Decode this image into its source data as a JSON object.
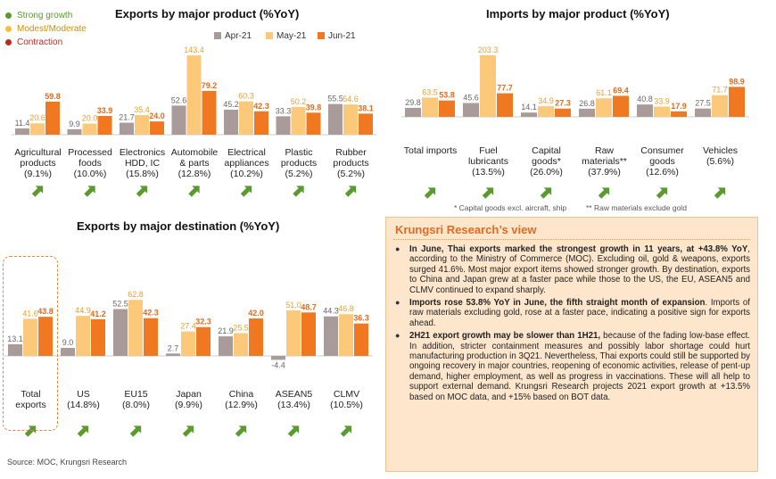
{
  "legend": {
    "strong": "Strong growth",
    "modest": "Modest/Moderate",
    "contraction": "Contraction",
    "colors": {
      "strong": "#5a9a2e",
      "modest": "#f5c040",
      "contraction": "#c0281e"
    }
  },
  "source": "Source: MOC, Krungsri Research",
  "colors": {
    "apr": "#a89b9a",
    "may": "#fcc97a",
    "jun": "#f07820",
    "arrow": "#5a9a2e"
  },
  "footnotes": {
    "capital": "* Capital goods excl. aircraft, ship",
    "raw": "** Raw materials exclude gold"
  },
  "view": {
    "title": "Krungsri Research’s view",
    "points": [
      {
        "bold": "In June, Thai exports marked the strongest growth in 11 years, at +43.8% YoY",
        "rest": ", according to the Ministry of Commerce (MOC). Excluding oil, gold & weapons, exports surged 41.6%. Most major export items showed stronger growth. By destination, exports to China and Japan grew at a faster pace while those to the US, the EU, ASEAN5 and CLMV continued to expand sharply."
      },
      {
        "bold": "Imports rose 53.8% YoY in June, the fifth straight month of expansion",
        "rest": ". Imports of raw materials excluding gold, rose at a faster pace, indicating a positive sign for exports ahead."
      },
      {
        "bold": "2H21 export growth may be slower than 1H21,",
        "rest": " because of the fading low-base effect. In addition, stricter containment measures and possibly labor shortage could hurt manufacturing production in 3Q21. Nevertheless, Thai exports could still be supported by ongoing recovery in major countries, reopening of economic activities, release of pent-up demand, higher employment, as well as progress in vaccinations. These will all help to support external demand. Krungsri Research projects 2021 export growth at +13.5% based on MOC data, and +15% based on BOT data."
      }
    ]
  },
  "chart_data": [
    {
      "type": "bar",
      "title": "Exports by major product (%YoY)",
      "series": [
        {
          "name": "Apr-21",
          "values": [
            11.4,
            9.9,
            21.7,
            52.6,
            45.2,
            33.3,
            55.5
          ]
        },
        {
          "name": "May-21",
          "values": [
            20.6,
            20.0,
            35.4,
            143.4,
            60.3,
            50.2,
            54.6
          ]
        },
        {
          "name": "Jun-21",
          "values": [
            59.8,
            33.9,
            24.0,
            79.2,
            42.3,
            39.8,
            38.1
          ]
        }
      ],
      "categories": [
        [
          "Agricultural",
          "products",
          "(9.1%)"
        ],
        [
          "Processed",
          "foods",
          "(10.0%)"
        ],
        [
          "Electronics",
          "HDD, IC",
          "(15.8%)"
        ],
        [
          "Automobile",
          "& parts",
          "(12.8%)"
        ],
        [
          "Electrical",
          "appliances",
          "(10.2%)"
        ],
        [
          "Plastic",
          "products",
          "(5.2%)"
        ],
        [
          "Rubber",
          "products",
          "(5.2%)"
        ]
      ],
      "indicators": [
        "strong",
        "strong",
        "strong",
        "strong",
        "strong",
        "strong",
        "strong"
      ]
    },
    {
      "type": "bar",
      "title": "Imports by major product (%YoY)",
      "series": [
        {
          "name": "Apr-21",
          "values": [
            29.8,
            45.6,
            14.1,
            26.8,
            40.8,
            27.5
          ]
        },
        {
          "name": "May-21",
          "values": [
            63.5,
            203.3,
            34.9,
            61.1,
            33.9,
            71.7
          ]
        },
        {
          "name": "Jun-21",
          "values": [
            53.8,
            77.7,
            27.3,
            69.4,
            17.9,
            98.9
          ]
        }
      ],
      "categories": [
        [
          "Total imports"
        ],
        [
          "Fuel",
          "lubricants",
          "(13.5%)"
        ],
        [
          "Capital",
          "goods*",
          "(26.0%)"
        ],
        [
          "Raw",
          "materials**",
          "(37.9%)"
        ],
        [
          "Consumer",
          "goods",
          "(12.6%)"
        ],
        [
          "Vehicles",
          "(5.6%)"
        ]
      ],
      "indicators": [
        "strong",
        "strong",
        "strong",
        "strong",
        "strong",
        "strong"
      ]
    },
    {
      "type": "bar",
      "title": "Exports by major destination (%YoY)",
      "series": [
        {
          "name": "Apr-21",
          "values": [
            13.1,
            9.0,
            52.5,
            2.7,
            21.9,
            -4.4,
            44.3
          ]
        },
        {
          "name": "May-21",
          "values": [
            41.6,
            44.9,
            62.8,
            27.4,
            25.5,
            51.0,
            46.8
          ]
        },
        {
          "name": "Jun-21",
          "values": [
            43.8,
            41.2,
            42.3,
            32.3,
            42.0,
            48.7,
            36.3
          ]
        }
      ],
      "categories": [
        [
          "Total",
          "exports"
        ],
        [
          "US",
          "(14.8%)"
        ],
        [
          "EU15",
          "(8.0%)"
        ],
        [
          "Japan",
          "(9.9%)"
        ],
        [
          "China",
          "(12.9%)"
        ],
        [
          "ASEAN5",
          "(13.4%)"
        ],
        [
          "CLMV",
          "(10.5%)"
        ]
      ],
      "indicators": [
        "strong",
        "strong",
        "strong",
        "strong",
        "strong",
        "strong",
        "strong"
      ]
    }
  ]
}
